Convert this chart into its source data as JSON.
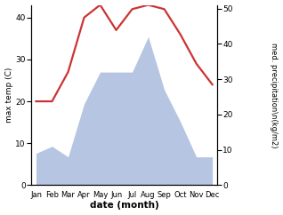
{
  "months": [
    "Jan",
    "Feb",
    "Mar",
    "Apr",
    "May",
    "Jun",
    "Jul",
    "Aug",
    "Sep",
    "Oct",
    "Nov",
    "Dec"
  ],
  "temperature": [
    20,
    20,
    27,
    40,
    43,
    37,
    42,
    43,
    42,
    36,
    29,
    24
  ],
  "precipitation": [
    9,
    11,
    8,
    23,
    32,
    32,
    32,
    42,
    27,
    18,
    8,
    8
  ],
  "temp_color": "#cc3333",
  "precip_color": "#aabbdd",
  "ylabel_left": "max temp (C)",
  "ylabel_right": "med. precipitation\\n(kg/m2)",
  "xlabel": "date (month)",
  "ylim_left": [
    0,
    43
  ],
  "ylim_right": [
    0,
    51
  ],
  "yticks_left": [
    0,
    10,
    20,
    30,
    40
  ],
  "yticks_right": [
    0,
    10,
    20,
    30,
    40,
    50
  ],
  "temp_linewidth": 1.6,
  "background_color": "#ffffff"
}
